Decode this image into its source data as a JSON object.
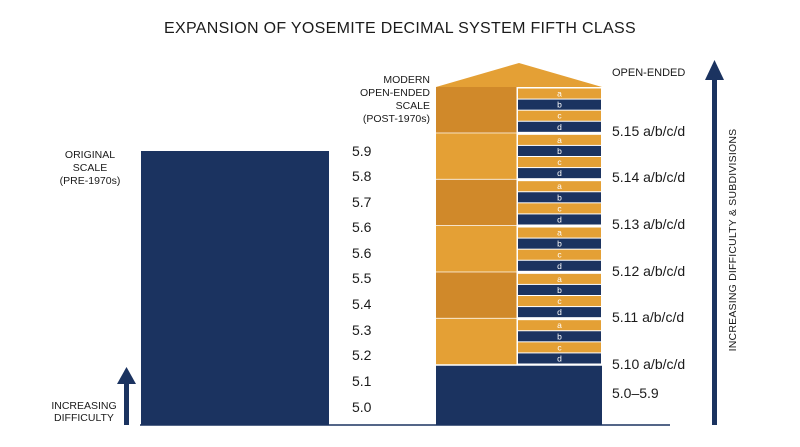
{
  "title": "EXPANSION OF YOSEMITE DECIMAL SYSTEM FIFTH CLASS",
  "colors": {
    "navy": "#1b3360",
    "gold": "#e4a035",
    "gold_dark": "#d0892a",
    "white": "#ffffff"
  },
  "original_scale": {
    "label": [
      "ORIGINAL",
      "SCALE",
      "(PRE-1970s)"
    ],
    "grades": [
      "5.9",
      "5.8",
      "5.7",
      "5.6",
      "5.6",
      "5.5",
      "5.4",
      "5.3",
      "5.2",
      "5.1",
      "5.0"
    ]
  },
  "modern_scale": {
    "label": [
      "MODERN",
      "OPEN-ENDED",
      "SCALE",
      "(POST-1970s)"
    ],
    "top_label": "OPEN-ENDED",
    "base_label": "5.0–5.9",
    "subgrade_letters": [
      "a",
      "b",
      "c",
      "d"
    ],
    "grades": [
      "5.15 a/b/c/d",
      "5.14 a/b/c/d",
      "5.13 a/b/c/d",
      "5.12 a/b/c/d",
      "5.11 a/b/c/d",
      "5.10 a/b/c/d"
    ]
  },
  "increasing_difficulty_label": [
    "INCREASING",
    "DIFFICULTY"
  ],
  "right_axis_label": "INCREASING DIFFICULTY & SUBDIVISIONS"
}
